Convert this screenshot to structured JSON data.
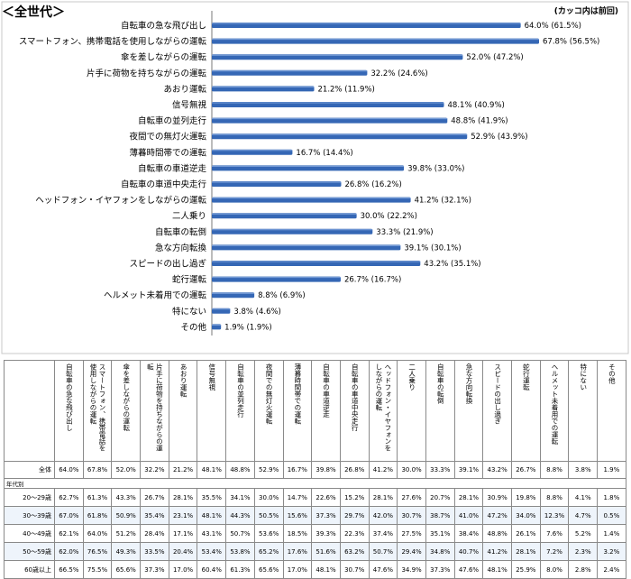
{
  "heading": "＜全世代＞",
  "note": "(カッコ内は前回)",
  "chart_data": {
    "type": "bar",
    "orientation": "horizontal",
    "title": "＜全世代＞",
    "categories": [
      "自転車の急な飛び出し",
      "スマートフォン、携帯電話を使用しながらの運転",
      "傘を差しながらの運転",
      "片手に荷物を持ちながらの運転",
      "あおり運転",
      "信号無視",
      "自転車の並列走行",
      "夜間での無灯火運転",
      "薄暮時間帯での運転",
      "自転車の車道逆走",
      "自転車の車道中央走行",
      "ヘッドフォン・イヤフォンをしながらの運転",
      "二人乗り",
      "自転車の転倒",
      "急な方向転換",
      "スピードの出し過ぎ",
      "蛇行運転",
      "ヘルメット未着用での運転",
      "特にない",
      "その他"
    ],
    "values": [
      64.0,
      67.8,
      52.0,
      32.2,
      21.2,
      48.1,
      48.8,
      52.9,
      16.7,
      39.8,
      26.8,
      41.2,
      30.0,
      33.3,
      39.1,
      43.2,
      26.7,
      8.8,
      3.8,
      1.9
    ],
    "previous": [
      61.5,
      56.5,
      47.2,
      24.6,
      11.9,
      40.9,
      41.9,
      43.9,
      14.4,
      33.0,
      16.2,
      32.1,
      22.2,
      21.9,
      30.1,
      35.1,
      16.7,
      6.9,
      4.6,
      1.9
    ],
    "value_labels": [
      "64.0%",
      "67.8%",
      "52.0%",
      "32.2%",
      "21.2%",
      "48.1%",
      "48.8%",
      "52.9%",
      "16.7%",
      "39.8%",
      "26.8%",
      "41.2%",
      "30.0%",
      "33.3%",
      "39.1%",
      "43.2%",
      "26.7%",
      "8.8%",
      "3.8%",
      "1.9%"
    ],
    "previous_labels": [
      "(61.5%)",
      "(56.5%)",
      "(47.2%)",
      "(24.6%)",
      "(11.9%)",
      "(40.9%)",
      "(41.9%)",
      "(43.9%)",
      "(14.4%)",
      "(33.0%)",
      "(16.2%)",
      "(32.1%)",
      "(22.2%)",
      "(21.9%)",
      "(30.1%)",
      "(35.1%)",
      "(16.7%)",
      "(6.9%)",
      "(4.6%)",
      "(1.9%)"
    ],
    "xlim": [
      0,
      70
    ],
    "bar_color": "#3567b5",
    "grid": false
  },
  "table": {
    "headers": [
      "自転車の急な飛び出し",
      "スマートフォン、携帯電話を使用しながらの運転",
      "傘を差しながらの運転",
      "片手に荷物を持ちながらの運転",
      "あおり運転",
      "信号無視",
      "自転車の並列走行",
      "夜間での無灯火運転",
      "薄暮時間帯での運転",
      "自転車の車道逆走",
      "自転車の車道中央走行",
      "ヘッドフォン・イヤフォンをしながらの運転",
      "二人乗り",
      "自転車の転倒",
      "急な方向転換",
      "スピードの出し過ぎ",
      "蛇行運転",
      "ヘルメット未着用での運転",
      "特にない",
      "その他"
    ],
    "total_label": "全体",
    "total_values": [
      "64.0%",
      "67.8%",
      "52.0%",
      "32.2%",
      "21.2%",
      "48.1%",
      "48.8%",
      "52.9%",
      "16.7%",
      "39.8%",
      "26.8%",
      "41.2%",
      "30.0%",
      "33.3%",
      "39.1%",
      "43.2%",
      "26.7%",
      "8.8%",
      "3.8%",
      "1.9%"
    ],
    "section_label": "年代別",
    "rows": [
      {
        "label": "20～29歳",
        "values": [
          "62.7%",
          "61.3%",
          "43.3%",
          "26.7%",
          "28.1%",
          "35.5%",
          "34.1%",
          "30.0%",
          "14.7%",
          "22.6%",
          "15.2%",
          "28.1%",
          "27.6%",
          "20.7%",
          "28.1%",
          "30.9%",
          "19.8%",
          "8.8%",
          "4.1%",
          "1.8%"
        ]
      },
      {
        "label": "30～39歳",
        "values": [
          "67.0%",
          "61.8%",
          "50.9%",
          "35.4%",
          "23.1%",
          "48.1%",
          "44.3%",
          "50.5%",
          "15.6%",
          "37.3%",
          "29.7%",
          "42.0%",
          "30.7%",
          "38.7%",
          "41.0%",
          "47.2%",
          "34.0%",
          "12.3%",
          "4.7%",
          "0.5%"
        ]
      },
      {
        "label": "40～49歳",
        "values": [
          "62.1%",
          "64.0%",
          "51.2%",
          "28.4%",
          "17.1%",
          "43.1%",
          "50.7%",
          "53.6%",
          "18.5%",
          "39.3%",
          "22.3%",
          "37.4%",
          "27.5%",
          "35.1%",
          "38.4%",
          "48.8%",
          "26.1%",
          "7.6%",
          "5.2%",
          "1.4%"
        ]
      },
      {
        "label": "50～59歳",
        "values": [
          "62.0%",
          "76.5%",
          "49.3%",
          "33.5%",
          "20.4%",
          "53.4%",
          "53.8%",
          "65.2%",
          "17.6%",
          "51.6%",
          "63.2%",
          "50.7%",
          "29.4%",
          "34.8%",
          "40.7%",
          "41.2%",
          "28.1%",
          "7.2%",
          "2.3%",
          "3.2%"
        ]
      },
      {
        "label": "60歳以上",
        "values": [
          "66.5%",
          "75.5%",
          "65.6%",
          "37.3%",
          "17.0%",
          "60.4%",
          "61.3%",
          "65.6%",
          "17.0%",
          "48.1%",
          "30.7%",
          "47.6%",
          "34.9%",
          "37.3%",
          "47.6%",
          "48.1%",
          "25.9%",
          "8.0%",
          "2.8%",
          "2.4%"
        ]
      }
    ]
  }
}
